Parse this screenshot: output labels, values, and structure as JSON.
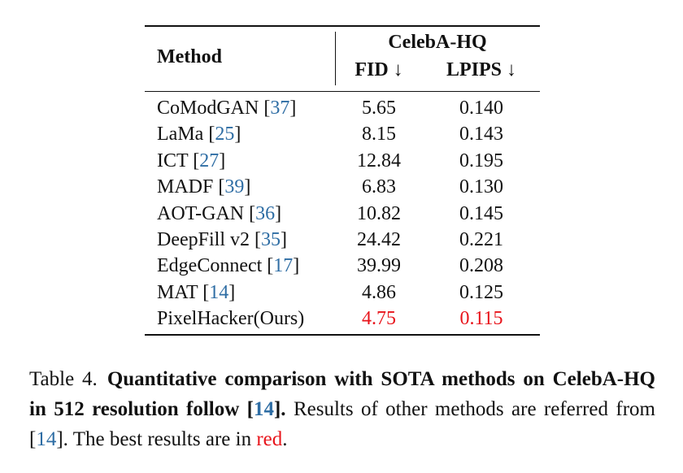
{
  "table": {
    "header": {
      "method": "Method",
      "dataset": "CelebA-HQ",
      "metric1": "FID ↓",
      "metric2": "LPIPS ↓"
    },
    "rows": [
      {
        "method": "CoModGAN",
        "ref": "37",
        "fid": "5.65",
        "lpips": "0.140"
      },
      {
        "method": "LaMa",
        "ref": "25",
        "fid": "8.15",
        "lpips": "0.143"
      },
      {
        "method": "ICT",
        "ref": "27",
        "fid": "12.84",
        "lpips": "0.195"
      },
      {
        "method": "MADF",
        "ref": "39",
        "fid": "6.83",
        "lpips": "0.130"
      },
      {
        "method": "AOT-GAN",
        "ref": "36",
        "fid": "10.82",
        "lpips": "0.145"
      },
      {
        "method": "DeepFill v2",
        "ref": "35",
        "fid": "24.42",
        "lpips": "0.221"
      },
      {
        "method": "EdgeConnect",
        "ref": "17",
        "fid": "39.99",
        "lpips": "0.208"
      },
      {
        "method": "MAT",
        "ref": "14",
        "fid": "4.86",
        "lpips": "0.125"
      },
      {
        "method": "PixelHacker(Ours)",
        "ref": "",
        "fid": "4.75",
        "lpips": "0.115",
        "best": true
      }
    ]
  },
  "caption": {
    "label": "Table 4.",
    "bold_text": "Quantitative comparison with SOTA methods on CelebA-HQ in 512 resolution follow [",
    "bold_ref": "14",
    "bold_end": "].",
    "text1": " Results of other methods are referred from [",
    "ref2": "14",
    "text2": "]. The best results are in ",
    "red_word": "red",
    "text3": "."
  },
  "colors": {
    "citation": "#2e6da4",
    "best": "#e8141b",
    "text": "#111111"
  }
}
